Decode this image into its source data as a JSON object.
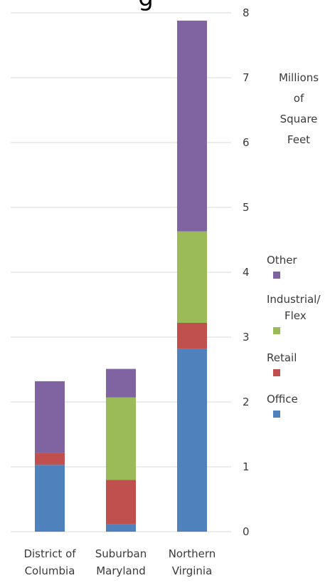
{
  "chart_data": {
    "type": "bar",
    "stacked": true,
    "title_fragment": "g",
    "categories": [
      [
        "District of",
        "Columbia"
      ],
      [
        "Suburban",
        "Maryland"
      ],
      [
        "Northern",
        "Virginia"
      ]
    ],
    "series": [
      {
        "name": "Office",
        "color": "#4f81bd",
        "values": [
          1.03,
          0.12,
          2.82
        ]
      },
      {
        "name": "Retail",
        "color": "#c0504d",
        "values": [
          0.18,
          0.68,
          0.4
        ]
      },
      {
        "name": "Industrial/ Flex",
        "color": "#9bbb59",
        "values": [
          0.0,
          1.27,
          1.41
        ]
      },
      {
        "name": "Other",
        "color": "#8064a2",
        "values": [
          1.11,
          0.44,
          3.25
        ]
      }
    ],
    "legend_order": [
      "Other",
      "Industrial/ Flex",
      "Retail",
      "Office"
    ],
    "y_unit_label": [
      "Millions",
      "of",
      "Square",
      "Feet"
    ],
    "ylim": [
      0,
      8
    ],
    "yticks": [
      0,
      1,
      2,
      3,
      4,
      5,
      6,
      7,
      8
    ],
    "grid": true,
    "y_axis_position": "right",
    "legend_position": "right"
  }
}
